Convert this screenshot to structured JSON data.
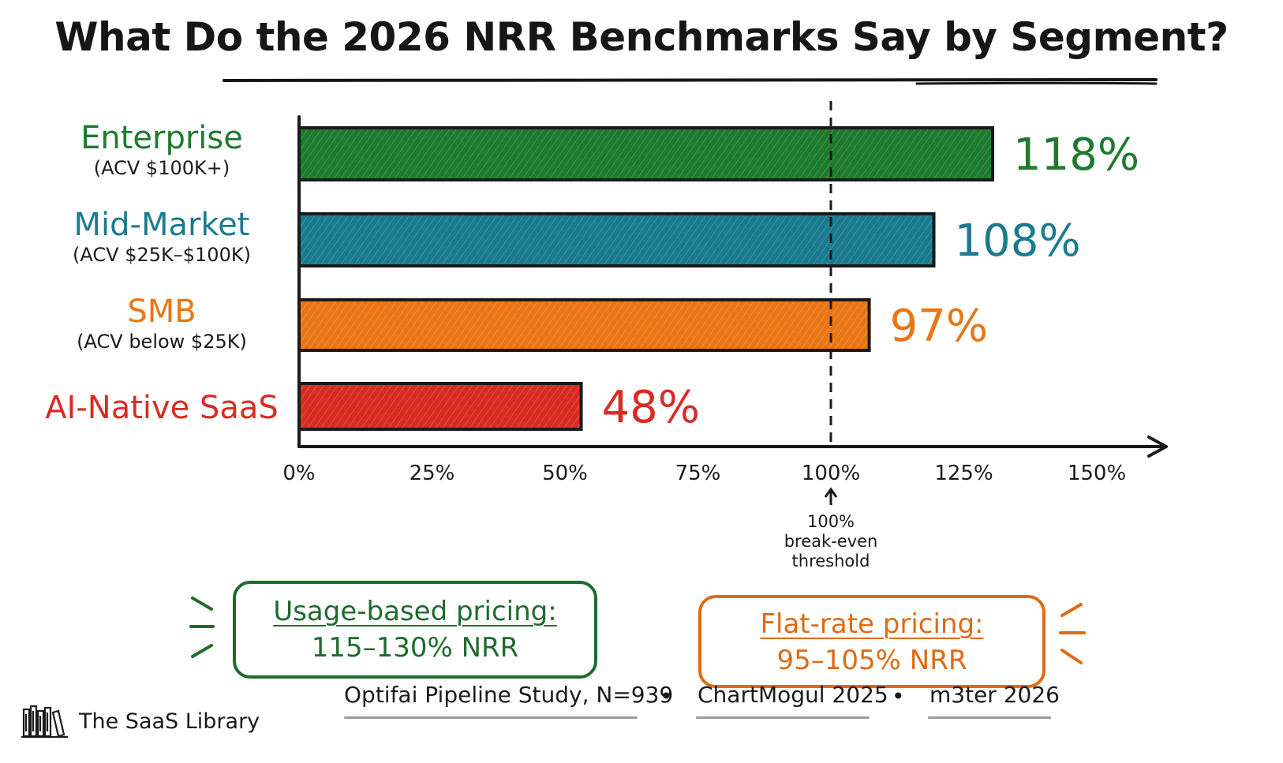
{
  "title": "What Do the 2026 NRR Benchmarks Say by Segment?",
  "chart_data": {
    "type": "bar",
    "orientation": "horizontal",
    "categories": [
      {
        "name": "Enterprise",
        "sub": "(ACV $100K+)",
        "color": "#1e7a2e",
        "value": 118,
        "label": "118%"
      },
      {
        "name": "Mid-Market",
        "sub": "(ACV $25K–$100K)",
        "color": "#1a7b8f",
        "value": 108,
        "label": "108%"
      },
      {
        "name": "SMB",
        "sub": "(ACV below $25K)",
        "color": "#ea7514",
        "value": 97,
        "label": "97%"
      },
      {
        "name": "AI-Native SaaS",
        "sub": "",
        "color": "#d92b22",
        "value": 48,
        "label": "48%"
      }
    ],
    "x_ticks": [
      "0%",
      "25%",
      "50%",
      "75%",
      "100%",
      "125%",
      "150%"
    ],
    "xlim": [
      0,
      150
    ],
    "reference_line": {
      "value": 100,
      "label_lines": [
        "100%",
        "break-even",
        "threshold"
      ]
    },
    "grid": false,
    "legend": "none"
  },
  "callouts": {
    "usage": {
      "line1": "Usage-based pricing:",
      "line2": "115–130% NRR",
      "color": "#1f6b2e"
    },
    "flat": {
      "line1": "Flat-rate pricing:",
      "line2": "95–105% NRR",
      "color": "#e06a12"
    }
  },
  "footer": {
    "brand": "The SaaS Library",
    "brand_icon": "bookshelf-icon",
    "sources": [
      "Optifai Pipeline Study, N=939",
      "ChartMogul 2025",
      "m3ter 2026"
    ],
    "separator": "•"
  }
}
